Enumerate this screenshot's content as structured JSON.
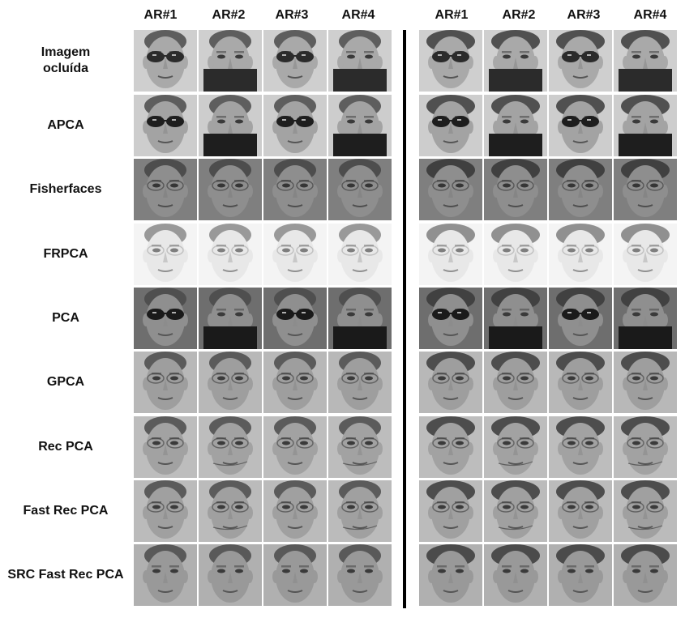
{
  "columns_left": [
    "AR#1",
    "AR#2",
    "AR#3",
    "AR#4"
  ],
  "columns_right": [
    "AR#1",
    "AR#2",
    "AR#3",
    "AR#4"
  ],
  "rows": [
    {
      "label": "Imagem\nocluída",
      "style": "occluded"
    },
    {
      "label": "APCA",
      "style": "apca"
    },
    {
      "label": "Fisherfaces",
      "style": "fisher"
    },
    {
      "label": "FRPCA",
      "style": "frpca"
    },
    {
      "label": "PCA",
      "style": "pca"
    },
    {
      "label": "GPCA",
      "style": "gpca"
    },
    {
      "label": "Rec PCA",
      "style": "rec"
    },
    {
      "label": "Fast Rec PCA",
      "style": "fastrec"
    },
    {
      "label": "SRC Fast Rec PCA",
      "style": "src"
    }
  ],
  "occlusion_pattern": [
    "sunglasses",
    "scarf",
    "sunglasses",
    "scarf"
  ],
  "subjects": [
    "male",
    "female"
  ]
}
